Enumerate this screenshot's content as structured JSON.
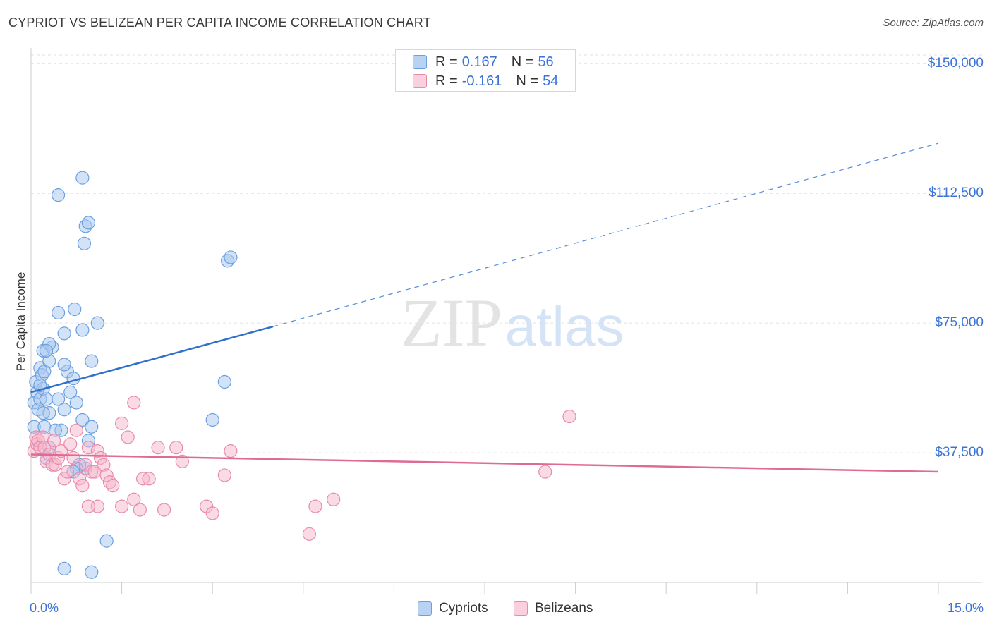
{
  "title": "CYPRIOT VS BELIZEAN PER CAPITA INCOME CORRELATION CHART",
  "source": "Source: ZipAtlas.com",
  "watermark": {
    "zip": "ZIP",
    "atlas": "atlas"
  },
  "legend": {
    "rows": [
      {
        "r_label": "R =",
        "r_value": "0.167",
        "n_label": "N =",
        "n_value": "56"
      },
      {
        "r_label": "R =",
        "r_value": "-0.161",
        "n_label": "N =",
        "n_value": "54"
      }
    ]
  },
  "bottom_legend": {
    "cypriots": "Cypriots",
    "belizeans": "Belizeans"
  },
  "colors": {
    "blue_fill": "#a8c8f0",
    "blue_stroke": "#6a9fe0",
    "blue_line": "#2f6fd0",
    "pink_fill": "#f6b8cc",
    "pink_stroke": "#ea8aaa",
    "pink_line": "#e06a96",
    "accent_text": "#3b74d6"
  },
  "chart_data": {
    "type": "scatter",
    "title": "CYPRIOT VS BELIZEAN PER CAPITA INCOME CORRELATION CHART",
    "xlabel": "",
    "ylabel": "Per Capita Income",
    "xlim": [
      0,
      15
    ],
    "ylim": [
      0,
      152500
    ],
    "x_tick_labels": [
      "0.0%",
      "15.0%"
    ],
    "y_ticks": [
      37500,
      75000,
      112500,
      150000
    ],
    "y_tick_labels": [
      "$37,500",
      "$75,000",
      "$112,500",
      "$150,000"
    ],
    "grid": true,
    "series": [
      {
        "name": "Cypriots",
        "color": "#a8c8f0",
        "points": [
          [
            0.05,
            52000
          ],
          [
            0.1,
            55000
          ],
          [
            0.08,
            58000
          ],
          [
            0.12,
            50000
          ],
          [
            0.15,
            53000
          ],
          [
            0.05,
            45000
          ],
          [
            0.2,
            56000
          ],
          [
            0.25,
            53000
          ],
          [
            0.15,
            62000
          ],
          [
            0.18,
            60000
          ],
          [
            0.22,
            61000
          ],
          [
            0.2,
            67000
          ],
          [
            0.35,
            68000
          ],
          [
            0.3,
            69000
          ],
          [
            0.3,
            64000
          ],
          [
            0.25,
            67000
          ],
          [
            0.45,
            53000
          ],
          [
            0.3,
            49000
          ],
          [
            0.2,
            49000
          ],
          [
            0.22,
            45000
          ],
          [
            0.5,
            44000
          ],
          [
            0.4,
            44000
          ],
          [
            0.6,
            61000
          ],
          [
            0.7,
            59000
          ],
          [
            0.55,
            50000
          ],
          [
            0.65,
            55000
          ],
          [
            0.55,
            63000
          ],
          [
            0.75,
            52000
          ],
          [
            0.85,
            47000
          ],
          [
            0.95,
            41000
          ],
          [
            1.0,
            45000
          ],
          [
            0.9,
            33000
          ],
          [
            0.8,
            34000
          ],
          [
            0.75,
            33000
          ],
          [
            0.7,
            32000
          ],
          [
            0.3,
            39000
          ],
          [
            0.25,
            36000
          ],
          [
            0.45,
            78000
          ],
          [
            0.55,
            72000
          ],
          [
            0.72,
            79000
          ],
          [
            0.85,
            73000
          ],
          [
            1.0,
            64000
          ],
          [
            0.45,
            112000
          ],
          [
            0.85,
            117000
          ],
          [
            0.9,
            103000
          ],
          [
            0.95,
            104000
          ],
          [
            0.88,
            98000
          ],
          [
            3.25,
            93000
          ],
          [
            3.3,
            94000
          ],
          [
            1.1,
            75000
          ],
          [
            3.2,
            58000
          ],
          [
            3.0,
            47000
          ],
          [
            1.25,
            12000
          ],
          [
            0.55,
            4000
          ],
          [
            1.0,
            3000
          ],
          [
            0.15,
            57000
          ]
        ],
        "trend": {
          "solid": [
            [
              0.0,
              55000
            ],
            [
              4.0,
              74000
            ]
          ],
          "dashed": [
            [
              4.0,
              74000
            ],
            [
              15.0,
              127000
            ]
          ]
        }
      },
      {
        "name": "Belizeans",
        "color": "#f6b8cc",
        "points": [
          [
            0.05,
            38000
          ],
          [
            0.08,
            42000
          ],
          [
            0.1,
            40000
          ],
          [
            0.12,
            41000
          ],
          [
            0.15,
            39000
          ],
          [
            0.2,
            42000
          ],
          [
            0.22,
            39000
          ],
          [
            0.25,
            35000
          ],
          [
            0.3,
            37000
          ],
          [
            0.35,
            34000
          ],
          [
            0.38,
            41000
          ],
          [
            0.4,
            34000
          ],
          [
            0.45,
            36000
          ],
          [
            0.5,
            38000
          ],
          [
            0.55,
            30000
          ],
          [
            0.6,
            32000
          ],
          [
            0.65,
            40000
          ],
          [
            0.7,
            36000
          ],
          [
            0.75,
            44000
          ],
          [
            0.8,
            30000
          ],
          [
            0.85,
            28000
          ],
          [
            0.9,
            34000
          ],
          [
            0.95,
            39000
          ],
          [
            1.0,
            32000
          ],
          [
            1.05,
            32000
          ],
          [
            1.1,
            38000
          ],
          [
            1.15,
            36000
          ],
          [
            1.2,
            34000
          ],
          [
            1.25,
            31000
          ],
          [
            1.3,
            29000
          ],
          [
            1.35,
            28000
          ],
          [
            1.5,
            46000
          ],
          [
            1.6,
            42000
          ],
          [
            1.7,
            24000
          ],
          [
            1.8,
            21000
          ],
          [
            1.85,
            30000
          ],
          [
            1.95,
            30000
          ],
          [
            2.1,
            39000
          ],
          [
            2.2,
            21000
          ],
          [
            2.4,
            39000
          ],
          [
            2.5,
            35000
          ],
          [
            2.9,
            22000
          ],
          [
            3.0,
            20000
          ],
          [
            3.2,
            31000
          ],
          [
            3.3,
            38000
          ],
          [
            1.1,
            22000
          ],
          [
            0.95,
            22000
          ],
          [
            1.7,
            52000
          ],
          [
            1.5,
            22000
          ],
          [
            4.6,
            14000
          ],
          [
            4.7,
            22000
          ],
          [
            5.0,
            24000
          ],
          [
            8.9,
            48000
          ],
          [
            8.5,
            32000
          ]
        ],
        "trend": {
          "solid": [
            [
              0.0,
              37000
            ],
            [
              15.0,
              32000
            ]
          ]
        }
      }
    ]
  }
}
